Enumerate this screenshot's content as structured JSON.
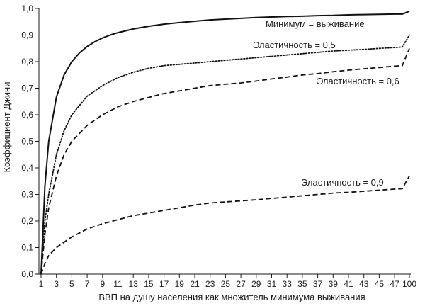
{
  "chart_data": {
    "type": "line",
    "title": "",
    "xlabel": "ВВП на душу населения как множитель минимума выживания",
    "ylabel": "Коэффициент Джини",
    "x_tick_labels": [
      "1",
      "3",
      "5",
      "7",
      "9",
      "11",
      "13",
      "15",
      "17",
      "19",
      "21",
      "23",
      "25",
      "27",
      "29",
      "31",
      "33",
      "35",
      "37",
      "39",
      "41",
      "43",
      "45",
      "47",
      "100"
    ],
    "y_tick_labels": [
      "0,0",
      "0,1",
      "0,2",
      "0,3",
      "0,4",
      "0,5",
      "0,6",
      "0,7",
      "0,8",
      "0,9",
      "1,0"
    ],
    "ylim": [
      0,
      1
    ],
    "series": [
      {
        "name": "Минимум = выживание",
        "style": "solid",
        "points": [
          [
            1,
            0
          ],
          [
            1.5,
            0.33
          ],
          [
            2,
            0.5
          ],
          [
            3,
            0.667
          ],
          [
            4,
            0.75
          ],
          [
            5,
            0.8
          ],
          [
            6,
            0.833
          ],
          [
            7,
            0.857
          ],
          [
            8,
            0.875
          ],
          [
            9,
            0.889
          ],
          [
            10,
            0.9
          ],
          [
            11,
            0.909
          ],
          [
            13,
            0.923
          ],
          [
            15,
            0.933
          ],
          [
            17,
            0.941
          ],
          [
            19,
            0.947
          ],
          [
            21,
            0.952
          ],
          [
            23,
            0.957
          ],
          [
            25,
            0.96
          ],
          [
            27,
            0.963
          ],
          [
            29,
            0.966
          ],
          [
            31,
            0.968
          ],
          [
            33,
            0.97
          ],
          [
            35,
            0.971
          ],
          [
            37,
            0.973
          ],
          [
            39,
            0.974
          ],
          [
            41,
            0.976
          ],
          [
            43,
            0.977
          ],
          [
            45,
            0.978
          ],
          [
            47,
            0.979
          ],
          [
            48,
            0.979
          ],
          [
            100,
            0.99
          ]
        ]
      },
      {
        "name": "Эластичность = 0,5",
        "style": "dotted",
        "points": [
          [
            1,
            0
          ],
          [
            1.5,
            0.2
          ],
          [
            2,
            0.3
          ],
          [
            3,
            0.45
          ],
          [
            4,
            0.54
          ],
          [
            5,
            0.6
          ],
          [
            7,
            0.67
          ],
          [
            9,
            0.71
          ],
          [
            11,
            0.74
          ],
          [
            13,
            0.76
          ],
          [
            15,
            0.775
          ],
          [
            17,
            0.785
          ],
          [
            19,
            0.79
          ],
          [
            21,
            0.795
          ],
          [
            23,
            0.8
          ],
          [
            25,
            0.805
          ],
          [
            27,
            0.81
          ],
          [
            29,
            0.815
          ],
          [
            31,
            0.82
          ],
          [
            33,
            0.825
          ],
          [
            35,
            0.83
          ],
          [
            37,
            0.835
          ],
          [
            39,
            0.84
          ],
          [
            41,
            0.843
          ],
          [
            43,
            0.846
          ],
          [
            45,
            0.85
          ],
          [
            47,
            0.853
          ],
          [
            48,
            0.855
          ],
          [
            100,
            0.9
          ]
        ]
      },
      {
        "name": "Эластичность = 0,6",
        "style": "dashed",
        "points": [
          [
            1,
            0
          ],
          [
            1.5,
            0.15
          ],
          [
            2,
            0.25
          ],
          [
            3,
            0.37
          ],
          [
            4,
            0.45
          ],
          [
            5,
            0.5
          ],
          [
            7,
            0.56
          ],
          [
            9,
            0.6
          ],
          [
            11,
            0.63
          ],
          [
            13,
            0.65
          ],
          [
            15,
            0.665
          ],
          [
            17,
            0.68
          ],
          [
            19,
            0.69
          ],
          [
            21,
            0.7
          ],
          [
            23,
            0.71
          ],
          [
            25,
            0.715
          ],
          [
            27,
            0.72
          ],
          [
            29,
            0.727
          ],
          [
            31,
            0.735
          ],
          [
            33,
            0.742
          ],
          [
            35,
            0.75
          ],
          [
            37,
            0.755
          ],
          [
            39,
            0.762
          ],
          [
            41,
            0.768
          ],
          [
            43,
            0.773
          ],
          [
            45,
            0.778
          ],
          [
            47,
            0.783
          ],
          [
            48,
            0.785
          ],
          [
            100,
            0.85
          ]
        ]
      },
      {
        "name": "Эластичность = 0,9",
        "style": "dashed",
        "points": [
          [
            1,
            0
          ],
          [
            1.5,
            0.04
          ],
          [
            2,
            0.07
          ],
          [
            3,
            0.1
          ],
          [
            4,
            0.12
          ],
          [
            5,
            0.14
          ],
          [
            7,
            0.17
          ],
          [
            9,
            0.19
          ],
          [
            11,
            0.205
          ],
          [
            13,
            0.22
          ],
          [
            15,
            0.23
          ],
          [
            17,
            0.24
          ],
          [
            19,
            0.25
          ],
          [
            21,
            0.26
          ],
          [
            23,
            0.268
          ],
          [
            25,
            0.272
          ],
          [
            27,
            0.276
          ],
          [
            29,
            0.28
          ],
          [
            31,
            0.285
          ],
          [
            33,
            0.29
          ],
          [
            35,
            0.295
          ],
          [
            37,
            0.3
          ],
          [
            39,
            0.305
          ],
          [
            41,
            0.308
          ],
          [
            43,
            0.312
          ],
          [
            45,
            0.316
          ],
          [
            47,
            0.32
          ],
          [
            48,
            0.322
          ],
          [
            100,
            0.37
          ]
        ]
      }
    ]
  }
}
